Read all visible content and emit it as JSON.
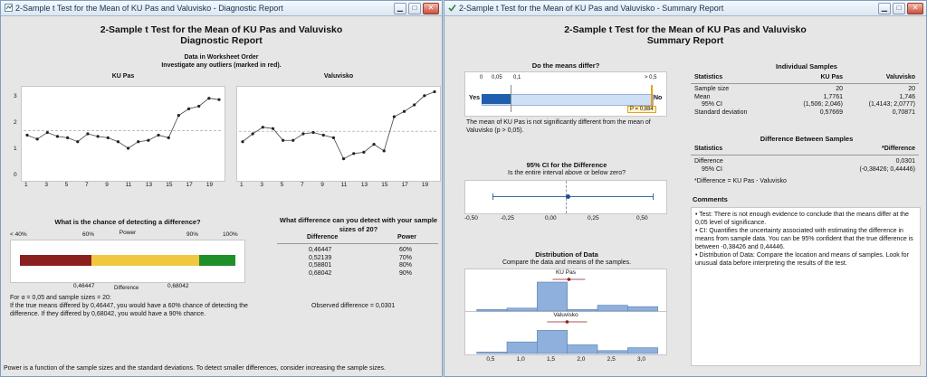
{
  "left_window": {
    "title": "2-Sample t Test for the Mean of KU Pas and Valuvisko - Diagnostic Report",
    "report_title_line1": "2-Sample t Test for the Mean of KU Pas and Valuvisko",
    "report_title_line2": "Diagnostic Report",
    "order_heading_line1": "Data in Worksheet Order",
    "order_heading_line2": "Investigate any outliers (marked in red).",
    "ku_label": "KU Pas",
    "valu_label": "Valuvisko",
    "y_ticks": [
      "3",
      "2",
      "1",
      "0"
    ],
    "x_ticks": [
      "1",
      "3",
      "5",
      "7",
      "9",
      "11",
      "13",
      "15",
      "17",
      "19"
    ],
    "chance_heading": "What is the chance of detecting a difference?",
    "power_label": "Power",
    "power_ticks": [
      "< 40%",
      "60%",
      "90%",
      "100%"
    ],
    "diff_label": "Difference",
    "diff_ticks": [
      "0,46447",
      "0,68042"
    ],
    "alpha_text": "For α = 0,05 and sample sizes = 20:",
    "explain_text": "If the true means differed by 0,46447, you would have a 60% chance of detecting the difference. If they differed by 0,68042, you would have a 90% chance.",
    "what_diff_heading": "What difference can you detect with your sample sizes of 20?",
    "table_headers": [
      "Difference",
      "Power"
    ],
    "table_rows": [
      [
        "0,46447",
        "60%"
      ],
      [
        "0,52139",
        "70%"
      ],
      [
        "0,58801",
        "80%"
      ],
      [
        "0,68042",
        "90%"
      ]
    ],
    "observed_text": "Observed difference = 0,0301",
    "footer": "Power is a function of the sample sizes and the standard deviations. To detect smaller differences, consider increasing the sample sizes."
  },
  "right_window": {
    "title": "2-Sample t Test for the Mean of KU Pas and Valuvisko - Summary Report",
    "report_title_line1": "2-Sample t Test for the Mean of KU Pas and Valuvisko",
    "report_title_line2": "Summary Report",
    "differ_heading": "Do the means differ?",
    "pscale_ticks": [
      "0",
      "0,05",
      "0,1",
      "> 0,5"
    ],
    "yes_label": "Yes",
    "no_label": "No",
    "p_value_label": "P = 0,884",
    "differ_text": "The mean of KU Pas is not significantly different from the mean of Valuvisko (p > 0,05).",
    "ci_heading": "95% CI for the Difference",
    "ci_sub": "Is the entire interval above or below zero?",
    "ci_ticks": [
      "-0,50",
      "-0,25",
      "0,00",
      "0,25",
      "0,50"
    ],
    "dist_heading": "Distribution of Data",
    "dist_sub": "Compare the data and means of the samples.",
    "hist_ku_label": "KU Pas",
    "hist_valu_label": "Valuvisko",
    "hist_ticks": [
      "0,5",
      "1,0",
      "1,5",
      "2,0",
      "2,5",
      "3,0"
    ],
    "indiv_heading": "Individual Samples",
    "indiv_cols": [
      "Statistics",
      "KU Pas",
      "Valuvisko"
    ],
    "indiv_rows": [
      [
        "Sample size",
        "20",
        "20"
      ],
      [
        "Mean",
        "1,7761",
        "1,746"
      ],
      [
        "95% CI",
        "(1,506; 2,046)",
        "(1,4143; 2,0777)"
      ],
      [
        "Standard deviation",
        "0,57669",
        "0,70871"
      ]
    ],
    "diffbs_heading": "Difference Between Samples",
    "diffbs_cols": [
      "Statistics",
      "*Difference"
    ],
    "diffbs_rows": [
      [
        "Difference",
        "0,0301"
      ],
      [
        "95% CI",
        "(-0,38426; 0,44446)"
      ]
    ],
    "diffbs_note": "*Difference = KU Pas - Valuvisko",
    "comments_heading": "Comments",
    "comments": [
      "• Test: There is not enough evidence to conclude that the means differ at the 0,05 level of significance.",
      "• CI: Quantifies the uncertainty associated with estimating the difference in means from sample data. You can be 95% confident that the true difference is between -0,38426 and 0,44446.",
      "• Distribution of Data: Compare the location and means of samples. Look for unusual data before interpreting the results of the test."
    ]
  },
  "chart_data": [
    {
      "type": "line",
      "title": "KU Pas",
      "x": [
        1,
        2,
        3,
        4,
        5,
        6,
        7,
        8,
        9,
        10,
        11,
        12,
        13,
        14,
        15,
        16,
        17,
        18,
        19,
        20
      ],
      "values": [
        1.6,
        1.45,
        1.7,
        1.55,
        1.5,
        1.35,
        1.65,
        1.55,
        1.5,
        1.35,
        1.1,
        1.35,
        1.4,
        1.6,
        1.5,
        2.35,
        2.6,
        2.7,
        3.0,
        2.95
      ],
      "mean": 1.7761,
      "ylim": [
        0,
        3.3
      ]
    },
    {
      "type": "line",
      "title": "Valuvisko",
      "x": [
        1,
        2,
        3,
        4,
        5,
        6,
        7,
        8,
        9,
        10,
        11,
        12,
        13,
        14,
        15,
        16,
        17,
        18,
        19,
        20
      ],
      "values": [
        1.35,
        1.65,
        1.9,
        1.85,
        1.4,
        1.4,
        1.65,
        1.7,
        1.6,
        1.5,
        0.7,
        0.9,
        0.95,
        1.25,
        1.0,
        2.3,
        2.5,
        2.75,
        3.1,
        3.25
      ],
      "mean": 1.746,
      "ylim": [
        0,
        3.3
      ]
    },
    {
      "type": "bar",
      "title": "KU Pas",
      "bin_centers": [
        0.5,
        1.0,
        1.5,
        2.0,
        2.5,
        3.0
      ],
      "values": [
        0.5,
        1,
        10,
        0.5,
        2,
        1.5
      ],
      "mean": 1.7761,
      "ci": [
        1.506,
        2.046
      ]
    },
    {
      "type": "bar",
      "title": "Valuvisko",
      "bin_centers": [
        0.5,
        1.0,
        1.5,
        2.0,
        2.5,
        3.0
      ],
      "values": [
        0.5,
        4,
        8,
        3,
        1,
        2
      ],
      "mean": 1.746,
      "ci": [
        1.4143,
        2.0777
      ]
    }
  ]
}
